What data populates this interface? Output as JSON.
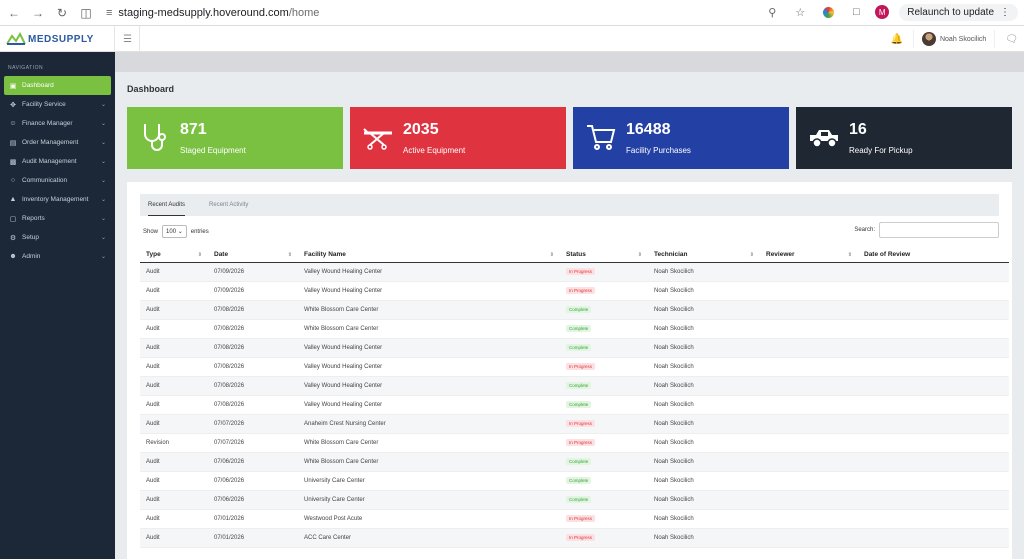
{
  "browser": {
    "url_host": "staging-medsupply.hoveround.com",
    "url_path": "/home",
    "relaunch_label": "Relaunch to update",
    "profile_initial": "M"
  },
  "header": {
    "logo_text": "MEDSUPPLY",
    "user_name": "Noah Skocilich"
  },
  "sidebar": {
    "title": "NAVIGATION",
    "items": [
      {
        "label": "Dashboard",
        "icon": "dashboard-icon"
      },
      {
        "label": "Facility Service",
        "icon": "wrench-icon"
      },
      {
        "label": "Finance Manager",
        "icon": "people-icon"
      },
      {
        "label": "Order Management",
        "icon": "cart-icon"
      },
      {
        "label": "Audit Management",
        "icon": "clipboard-icon"
      },
      {
        "label": "Communication",
        "icon": "chat-icon"
      },
      {
        "label": "Inventory Management",
        "icon": "chart-icon"
      },
      {
        "label": "Reports",
        "icon": "document-icon"
      },
      {
        "label": "Setup",
        "icon": "gear-icon"
      },
      {
        "label": "Admin",
        "icon": "user-icon"
      }
    ]
  },
  "main": {
    "title": "Dashboard",
    "cards": [
      {
        "value": "871",
        "label": "Staged Equipment",
        "color": "#7ac142",
        "icon": "stethoscope-icon"
      },
      {
        "value": "2035",
        "label": "Active Equipment",
        "color": "#df3440",
        "icon": "stretcher-icon"
      },
      {
        "value": "16488",
        "label": "Facility Purchases",
        "color": "#2340a5",
        "icon": "cart-icon"
      },
      {
        "value": "16",
        "label": "Ready For Pickup",
        "color": "#1f2733",
        "icon": "truck-icon"
      }
    ],
    "tabs": [
      "Recent Audits",
      "Recent Activity"
    ],
    "show_label": "Show",
    "show_value": "100",
    "entries_label": "entries",
    "search_label": "Search:",
    "columns": [
      "Type",
      "Date",
      "Facility Name",
      "Status",
      "Technician",
      "Reviewer",
      "Date of Review"
    ],
    "rows": [
      [
        "Audit",
        "07/09/2026",
        "Valley Wound Healing Center",
        "In Progress",
        "Noah Skocilich"
      ],
      [
        "Audit",
        "07/09/2026",
        "Valley Wound Healing Center",
        "In Progress",
        "Noah Skocilich"
      ],
      [
        "Audit",
        "07/08/2026",
        "White Blossom Care Center",
        "Complete",
        "Noah Skocilich"
      ],
      [
        "Audit",
        "07/08/2026",
        "White Blossom Care Center",
        "Complete",
        "Noah Skocilich"
      ],
      [
        "Audit",
        "07/08/2026",
        "Valley Wound Healing Center",
        "Complete",
        "Noah Skocilich"
      ],
      [
        "Audit",
        "07/08/2026",
        "Valley Wound Healing Center",
        "In Progress",
        "Noah Skocilich"
      ],
      [
        "Audit",
        "07/08/2026",
        "Valley Wound Healing Center",
        "Complete",
        "Noah Skocilich"
      ],
      [
        "Audit",
        "07/08/2026",
        "Valley Wound Healing Center",
        "Complete",
        "Noah Skocilich"
      ],
      [
        "Audit",
        "07/07/2026",
        "Anaheim Crest Nursing Center",
        "In Progress",
        "Noah Skocilich"
      ],
      [
        "Revision",
        "07/07/2026",
        "White Blossom Care Center",
        "In Progress",
        "Noah Skocilich"
      ],
      [
        "Audit",
        "07/06/2026",
        "White Blossom Care Center",
        "Complete",
        "Noah Skocilich"
      ],
      [
        "Audit",
        "07/06/2026",
        "University Care Center",
        "Complete",
        "Noah Skocilich"
      ],
      [
        "Audit",
        "07/06/2026",
        "University Care Center",
        "Complete",
        "Noah Skocilich"
      ],
      [
        "Audit",
        "07/01/2026",
        "Westwood Post Acute",
        "In Progress",
        "Noah Skocilich"
      ],
      [
        "Audit",
        "07/01/2026",
        "ACC Care Center",
        "In Progress",
        "Noah Skocilich"
      ]
    ]
  }
}
